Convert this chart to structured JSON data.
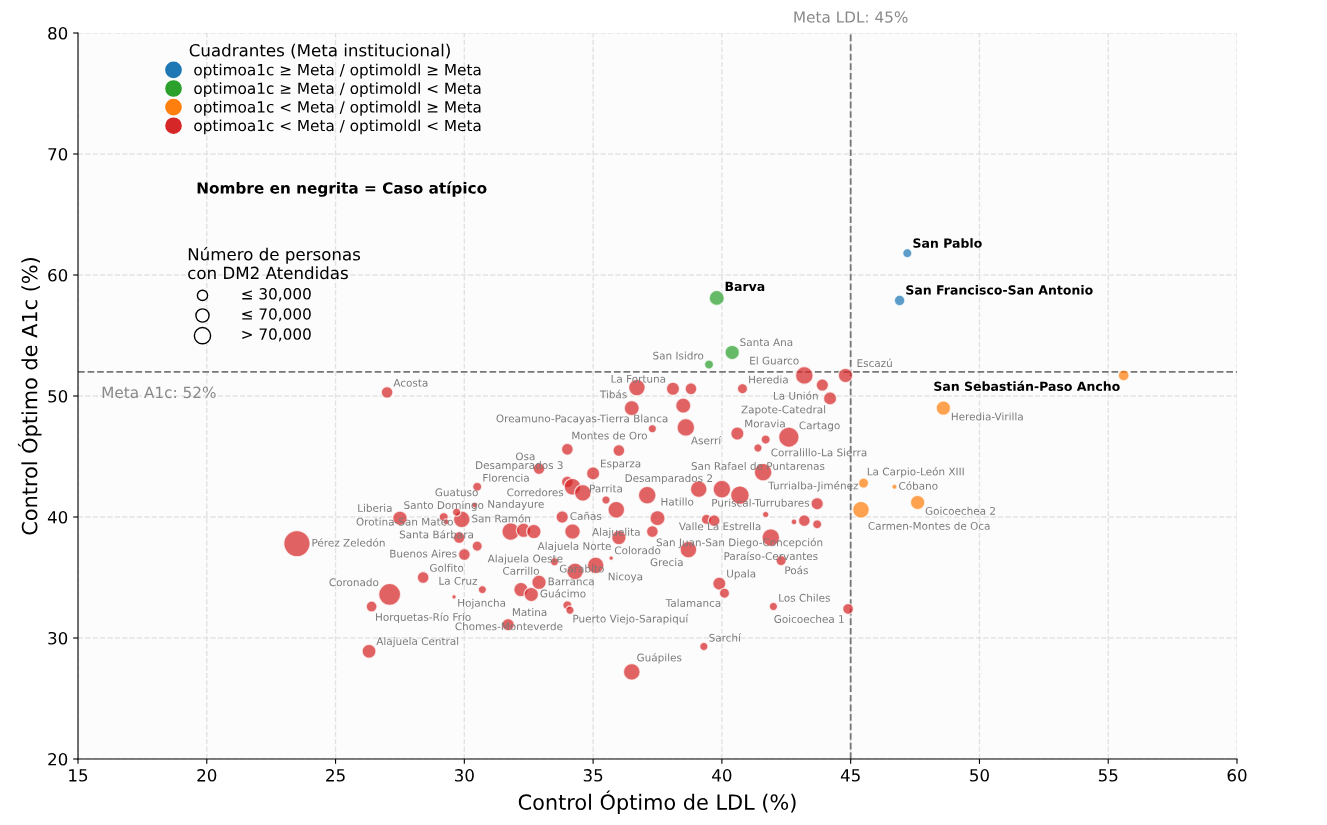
{
  "chart_data": {
    "type": "bubble",
    "xlabel": "Control Óptimo de LDL (%)",
    "ylabel": "Control Óptimo de A1c (%)",
    "xlim": [
      15,
      60
    ],
    "xticks": [
      15,
      20,
      25,
      30,
      35,
      40,
      45,
      50,
      55,
      60
    ],
    "ylim": [
      20,
      80
    ],
    "yticks": [
      20,
      30,
      40,
      50,
      60,
      70,
      80
    ],
    "grid": true,
    "legend": "top left",
    "legend_title": "Cuadrantes (Meta institucional)",
    "annotations": [
      "Nombre en negrita = Caso atípico",
      "Número de personas\ncon DM2 Atendidas",
      {
        "text": "San Pablo",
        "x": 47.2,
        "y": 61.8
      },
      {
        "text": "San Francisco-San Antonio",
        "x": 46.9,
        "y": 57.9
      },
      {
        "text": "Barva",
        "x": 39.8,
        "y": 58.1
      },
      {
        "text": "San Sebastián-Paso Ancho",
        "x": 55.6,
        "y": 51.7
      }
    ],
    "size_legend": [
      {
        "value": 0.15,
        "label": "≤ 30,000"
      },
      {
        "value": 0.25,
        "label": "≤ 70,000"
      },
      {
        "value": 0.38,
        "label": "> 70,000"
      }
    ],
    "ref_lines": [
      {
        "axis": "x",
        "value": 45,
        "label": "Meta LDL: 45%",
        "color": "#777777",
        "line_style": "dashed"
      },
      {
        "axis": "y",
        "value": 52,
        "label": "Meta A1c: 52%",
        "color": "#777777",
        "line_style": "dashed"
      }
    ],
    "series": [
      {
        "name": "optimoa1c ≥ Meta / optimoldl ≥ Meta",
        "color": "#1f77b4",
        "x": [
          47.2,
          46.9
        ],
        "values": [
          61.8,
          57.9
        ],
        "sizes": [
          0.12,
          0.16
        ],
        "value_labels": [
          null,
          null
        ]
      },
      {
        "name": "optimoa1c ≥ Meta / optimoldl < Meta",
        "color": "#2ca02c",
        "x": [
          39.8,
          40.4,
          39.5
        ],
        "values": [
          58.1,
          53.6,
          52.6
        ],
        "sizes": [
          0.33,
          0.3,
          0.12
        ],
        "value_labels": [
          null,
          "Santa Ana",
          "San Isidro"
        ]
      },
      {
        "name": "optimoa1c < Meta / optimoldl ≥ Meta",
        "color": "#ff7f0e",
        "x": [
          55.6,
          48.6,
          45.5,
          46.7,
          47.6,
          45.4
        ],
        "values": [
          51.7,
          49.0,
          42.8,
          42.5,
          41.2,
          40.6
        ],
        "sizes": [
          0.17,
          0.3,
          0.15,
          0.04,
          0.3,
          0.4
        ],
        "value_labels": [
          null,
          "Heredia-Virilla",
          "La Carpio-León XIII",
          "Cóbano",
          "Goicoechea 2",
          "Carmen-Montes de Oca"
        ]
      },
      {
        "name": "optimoa1c < Meta / optimoldl < Meta",
        "color": "#d62728",
        "x": [
          27.0,
          36.7,
          36.5,
          37.3,
          34.0,
          36.0,
          32.9,
          35.0,
          30.5,
          34.0,
          43.2,
          44.8,
          43.9,
          44.2,
          38.5,
          38.1,
          38.8,
          40.8,
          38.6,
          40.6,
          42.6,
          41.7,
          41.4,
          41.6,
          39.1,
          40.0,
          40.7,
          43.7,
          41.7,
          37.5,
          39.4,
          39.7,
          42.8,
          43.2,
          43.7,
          37.3,
          36.0,
          41.9,
          38.7,
          42.3,
          39.9,
          40.1,
          42.0,
          44.9,
          39.3,
          36.5,
          31.7,
          26.3,
          26.4,
          27.1,
          29.6,
          28.4,
          30.7,
          32.2,
          32.6,
          32.9,
          34.0,
          34.1,
          33.5,
          35.1,
          34.3,
          35.7,
          30.0,
          30.5,
          23.5,
          27.5,
          29.2,
          29.3,
          29.9,
          29.7,
          30.4,
          29.8,
          31.8,
          32.3,
          32.7,
          33.8,
          34.2,
          35.5,
          35.9,
          34.2,
          34.6,
          37.1
        ],
        "values": [
          50.3,
          50.7,
          49.0,
          47.3,
          45.6,
          45.5,
          44.0,
          43.6,
          42.5,
          42.9,
          51.7,
          51.7,
          50.9,
          49.8,
          49.2,
          50.6,
          50.6,
          50.6,
          47.4,
          46.9,
          46.6,
          46.4,
          45.7,
          43.7,
          42.3,
          42.3,
          41.8,
          41.1,
          40.2,
          39.9,
          39.8,
          39.7,
          39.6,
          39.7,
          39.4,
          38.8,
          38.3,
          38.3,
          37.3,
          36.4,
          34.5,
          33.7,
          32.6,
          32.4,
          29.3,
          27.2,
          31.1,
          28.9,
          32.6,
          33.6,
          33.4,
          35.0,
          34.0,
          34.0,
          33.6,
          34.6,
          32.7,
          32.3,
          36.3,
          36.0,
          35.5,
          36.6,
          36.9,
          37.6,
          37.8,
          39.9,
          40.0,
          39.6,
          39.8,
          40.4,
          41.0,
          38.3,
          38.8,
          38.9,
          38.8,
          40.0,
          38.8,
          41.4,
          40.6,
          42.5,
          42.0,
          41.8
        ],
        "sizes": [
          0.2,
          0.4,
          0.33,
          0.1,
          0.2,
          0.2,
          0.2,
          0.25,
          0.12,
          0.2,
          0.45,
          0.3,
          0.22,
          0.25,
          0.33,
          0.25,
          0.2,
          0.15,
          0.45,
          0.25,
          0.6,
          0.12,
          0.1,
          0.45,
          0.4,
          0.45,
          0.5,
          0.22,
          0.06,
          0.33,
          0.15,
          0.2,
          0.05,
          0.2,
          0.12,
          0.2,
          0.3,
          0.45,
          0.4,
          0.15,
          0.25,
          0.15,
          0.1,
          0.17,
          0.1,
          0.4,
          0.22,
          0.28,
          0.17,
          0.7,
          0.03,
          0.2,
          0.1,
          0.3,
          0.3,
          0.3,
          0.12,
          0.1,
          0.1,
          0.4,
          0.4,
          0.03,
          0.2,
          0.15,
          1,
          0.3,
          0.12,
          0.05,
          0.4,
          0.1,
          0.05,
          0.2,
          0.45,
          0.3,
          0.3,
          0.22,
          0.35,
          0.1,
          0.4,
          0.4,
          0.4,
          0.45
        ],
        "value_labels": [
          "Acosta",
          null,
          "Tibás",
          "Montes de Oro",
          null,
          null,
          "Osa",
          "Esparza",
          "Florencia",
          "Corredores",
          "El Guarco",
          "Escazú",
          "La Unión",
          "Zapote-Catedral",
          "Oreamuno-Pacayas-Tierra Blanca",
          "La Fortuna",
          null,
          "Heredia",
          "Aserrí",
          "Moravia",
          "Cartago",
          "Corralillo-La Sierra",
          "San Rafael de Puntarenas",
          "Turrialba-Jiménez",
          "Hatillo",
          "Desamparados 2",
          null,
          "Puriscal-Turrubares",
          "Valle La Estrella",
          null,
          null,
          null,
          null,
          null,
          null,
          "San Juan-San Diego-Concepción",
          "Alajuela Norte",
          "Paraíso-Cervantes",
          "Grecia",
          "Poás",
          "Upala",
          "Talamanca",
          "Los Chiles",
          "Goicoechea 1",
          "Sarchí",
          "Guápiles",
          "Matina",
          "Alajuela Central",
          "Horquetas-Río Frío",
          "Coronado",
          "Hojancha",
          "Golfito",
          "La Cruz",
          "Carrillo",
          "Guácimo",
          "Barranca",
          "Puerto Viejo-Sarapiquí",
          "Chomes-Monteverde",
          "Garabito",
          "Nicoya",
          "Alajuela Oeste",
          "Colorado",
          "Buenos Aires",
          "Santa Bárbara",
          "Pérez Zeledón",
          "Liberia",
          "Santo Domingo",
          null,
          "San Ramón",
          "Guatuso",
          "Nandayure",
          "Orotina-San Mateo",
          null,
          null,
          null,
          "Cañas",
          null,
          "Parrita",
          "Alajuelita",
          "Desamparados 3",
          null,
          null
        ]
      }
    ]
  }
}
